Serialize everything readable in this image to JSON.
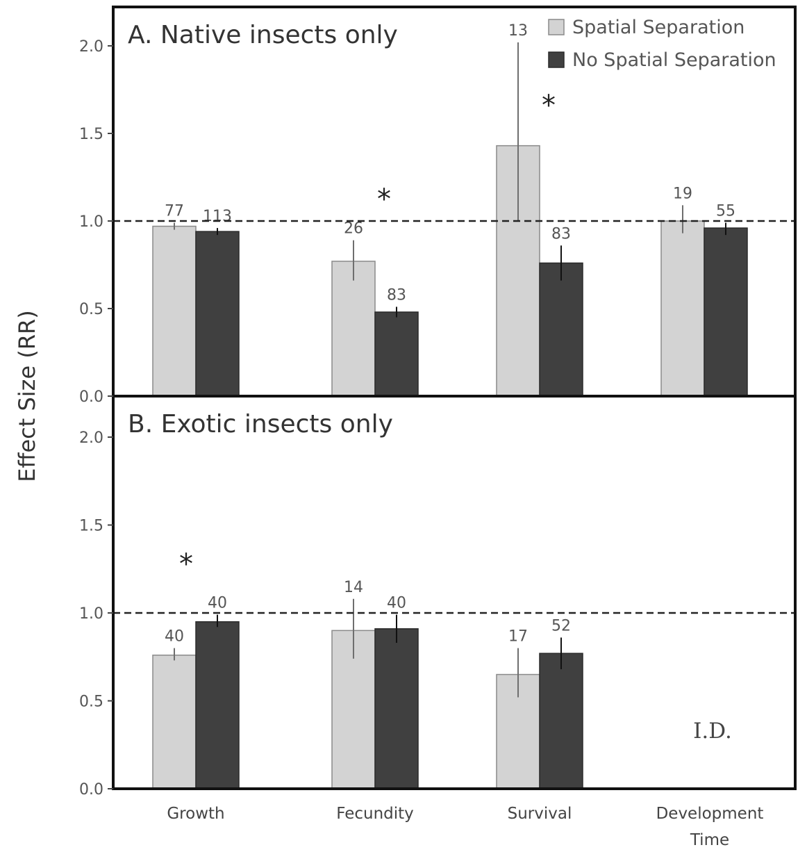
{
  "chart_data": {
    "type": "bar",
    "ylabel": "Effect Size (RR)",
    "categories": [
      "Growth",
      "Fecundity",
      "Survival",
      "Development|Time"
    ],
    "legend": {
      "placement": "top-right",
      "entries": [
        {
          "name": "Spatial Separation",
          "color": "#d3d3d3"
        },
        {
          "name": "No Spatial Separation",
          "color": "#404040"
        }
      ]
    },
    "ylim": [
      0,
      2.2
    ],
    "yticks": [
      "0.0",
      "0.5",
      "1.0",
      "1.5",
      "2.0"
    ],
    "reference_line": 1.0,
    "panels": [
      {
        "title": "A. Native insects only",
        "series": [
          {
            "name": "Spatial Separation",
            "values": [
              0.97,
              0.77,
              1.43,
              1.0
            ],
            "err_low": [
              0.95,
              0.66,
              1.0,
              0.93
            ],
            "err_high": [
              0.99,
              0.89,
              2.02,
              1.09
            ],
            "n": [
              "77",
              "26",
              "13",
              "19"
            ]
          },
          {
            "name": "No Spatial Separation",
            "values": [
              0.94,
              0.48,
              0.76,
              0.96
            ],
            "err_low": [
              0.92,
              0.45,
              0.66,
              0.92
            ],
            "err_high": [
              0.96,
              0.51,
              0.86,
              0.99
            ],
            "n": [
              "113",
              "83",
              "83",
              "55"
            ]
          }
        ],
        "annotations": [
          {
            "text": "*",
            "category": 1
          },
          {
            "text": "*",
            "category": 2
          }
        ]
      },
      {
        "title": "B. Exotic insects only",
        "series": [
          {
            "name": "Spatial Separation",
            "values": [
              0.76,
              0.9,
              0.65,
              null
            ],
            "err_low": [
              0.73,
              0.74,
              0.52,
              null
            ],
            "err_high": [
              0.8,
              1.08,
              0.8,
              null
            ],
            "n": [
              "40",
              "14",
              "17",
              ""
            ]
          },
          {
            "name": "No Spatial Separation",
            "values": [
              0.95,
              0.91,
              0.77,
              null
            ],
            "err_low": [
              0.92,
              0.83,
              0.68,
              null
            ],
            "err_high": [
              0.99,
              0.99,
              0.86,
              null
            ],
            "n": [
              "40",
              "40",
              "52",
              ""
            ]
          }
        ],
        "annotations": [
          {
            "text": "*",
            "category": 0
          },
          {
            "text": "I.D.",
            "category": 3
          }
        ]
      }
    ]
  }
}
